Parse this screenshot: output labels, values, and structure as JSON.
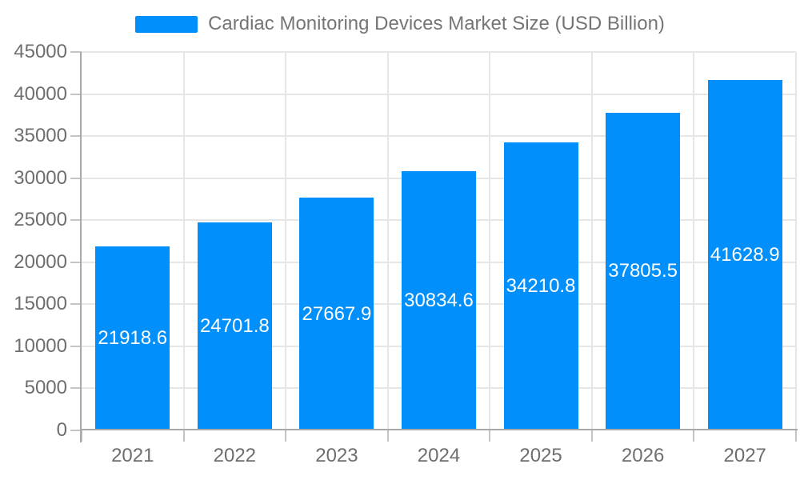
{
  "chart_data": {
    "type": "bar",
    "title": "Cardiac Monitoring Devices Market Size (USD Billion)",
    "categories": [
      "2021",
      "2022",
      "2023",
      "2024",
      "2025",
      "2026",
      "2027"
    ],
    "values": [
      21918.6,
      24701.8,
      27667.9,
      30834.6,
      34210.8,
      37805.5,
      41628.9
    ],
    "data_labels": [
      "21918.6",
      "24701.8",
      "27667.9",
      "30834.6",
      "34210.8",
      "37805.5",
      "41628.9"
    ],
    "xlabel": "",
    "ylabel": "",
    "ylim": [
      0,
      45000
    ],
    "ytick_step": 5000,
    "ytick_labels": [
      "0",
      "5000",
      "10000",
      "15000",
      "20000",
      "25000",
      "30000",
      "35000",
      "40000",
      "45000"
    ],
    "grid": true,
    "legend_position": "top",
    "colors": {
      "bar": "#0190fb",
      "grid_line": "#e6e6e6",
      "axis_line": "#a9a9a9",
      "tick": "#c4c4c4",
      "axis_label": "#6e6e6e",
      "title": "#757575",
      "data_label": "#ffffff"
    }
  }
}
